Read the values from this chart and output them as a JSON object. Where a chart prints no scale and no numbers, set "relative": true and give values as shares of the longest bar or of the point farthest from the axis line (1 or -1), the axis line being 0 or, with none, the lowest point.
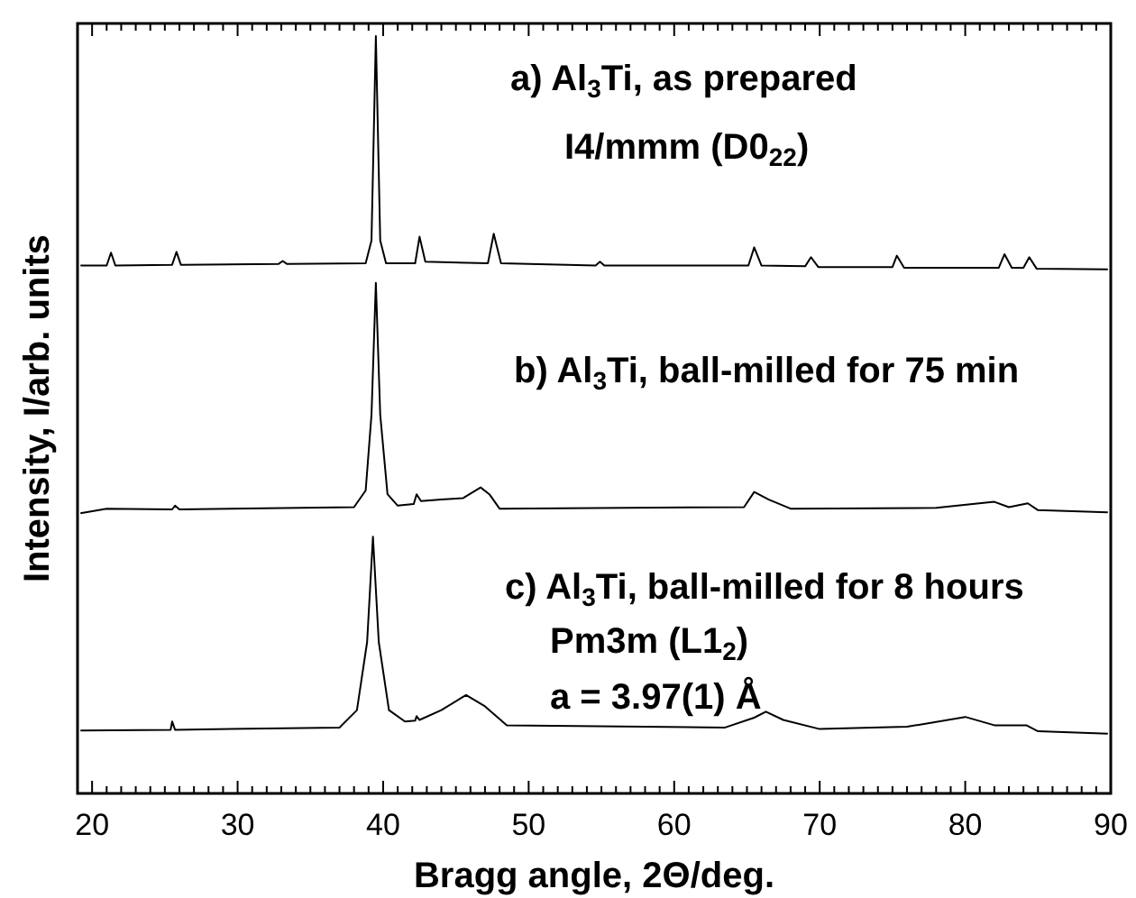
{
  "chart_data": {
    "type": "line",
    "relative": true,
    "xlabel": "Bragg angle, 2Θ/deg.",
    "ylabel": "Intensity, I/arb. units",
    "annotations": [
      "a) Al$_{3}$Ti, as prepared",
      "I4/mmm (D0$_{22}$)",
      "b) Al$_{3}$Ti, ball-milled for 75 min",
      "c) Al$_{3}$Ti, ball-milled for 8 hours",
      "Pm3m (L1$_{2}$)",
      "a = 3.97(1) Å"
    ],
    "xlim": [
      19,
      90
    ],
    "xticks": [
      20,
      {
        "value": 21,
        "label": null
      },
      {
        "value": 22,
        "label": null
      },
      {
        "value": 23,
        "label": null
      },
      {
        "value": 24,
        "label": null
      },
      {
        "value": 25,
        "label": null
      },
      {
        "value": 26,
        "label": null
      },
      {
        "value": 27,
        "label": null
      },
      {
        "value": 28,
        "label": null
      },
      {
        "value": 29,
        "label": null
      },
      30,
      {
        "value": 31,
        "label": null
      },
      {
        "value": 32,
        "label": null
      },
      {
        "value": 33,
        "label": null
      },
      {
        "value": 34,
        "label": null
      },
      {
        "value": 35,
        "label": null
      },
      {
        "value": 36,
        "label": null
      },
      {
        "value": 37,
        "label": null
      },
      {
        "value": 38,
        "label": null
      },
      {
        "value": 39,
        "label": null
      },
      40,
      {
        "value": 41,
        "label": null
      },
      {
        "value": 42,
        "label": null
      },
      {
        "value": 43,
        "label": null
      },
      {
        "value": 44,
        "label": null
      },
      {
        "value": 45,
        "label": null
      },
      {
        "value": 46,
        "label": null
      },
      {
        "value": 47,
        "label": null
      },
      {
        "value": 48,
        "label": null
      },
      {
        "value": 49,
        "label": null
      },
      50,
      {
        "value": 51,
        "label": null
      },
      {
        "value": 52,
        "label": null
      },
      {
        "value": 53,
        "label": null
      },
      {
        "value": 54,
        "label": null
      },
      {
        "value": 55,
        "label": null
      },
      {
        "value": 56,
        "label": null
      },
      {
        "value": 57,
        "label": null
      },
      {
        "value": 58,
        "label": null
      },
      {
        "value": 59,
        "label": null
      },
      60,
      {
        "value": 61,
        "label": null
      },
      {
        "value": 62,
        "label": null
      },
      {
        "value": 63,
        "label": null
      },
      {
        "value": 64,
        "label": null
      },
      {
        "value": 65,
        "label": null
      },
      {
        "value": 66,
        "label": null
      },
      {
        "value": 67,
        "label": null
      },
      {
        "value": 68,
        "label": null
      },
      {
        "value": 69,
        "label": null
      },
      70,
      {
        "value": 71,
        "label": null
      },
      {
        "value": 72,
        "label": null
      },
      {
        "value": 73,
        "label": null
      },
      {
        "value": 74,
        "label": null
      },
      {
        "value": 75,
        "label": null
      },
      {
        "value": 76,
        "label": null
      },
      {
        "value": 77,
        "label": null
      },
      {
        "value": 78,
        "label": null
      },
      {
        "value": 79,
        "label": null
      },
      80,
      {
        "value": 81,
        "label": null
      },
      {
        "value": 82,
        "label": null
      },
      {
        "value": 83,
        "label": null
      },
      {
        "value": 84,
        "label": null
      },
      {
        "value": 85,
        "label": null
      },
      {
        "value": 86,
        "label": null
      },
      {
        "value": 87,
        "label": null
      },
      {
        "value": 88,
        "label": null
      },
      {
        "value": 89,
        "label": null
      },
      90
    ],
    "series": [
      {
        "color": "#000000",
        "x": [
          19.2,
          21.0,
          21.3,
          21.6,
          25.5,
          25.8,
          26.1,
          32.8,
          33.1,
          33.4,
          38.8,
          39.2,
          39.5,
          39.8,
          40.2,
          42.2,
          42.5,
          42.9,
          47.2,
          47.6,
          48.1,
          54.6,
          54.9,
          55.2,
          65.1,
          65.5,
          66.0,
          69.0,
          69.4,
          69.9,
          75.0,
          75.3,
          75.8,
          82.3,
          82.7,
          83.2,
          84.0,
          84.4,
          84.9,
          89.8
        ],
        "values": [
          0.697,
          0.697,
          0.714,
          0.697,
          0.698,
          0.715,
          0.698,
          0.699,
          0.703,
          0.699,
          0.7,
          0.73,
          1.0,
          0.73,
          0.7,
          0.7,
          0.735,
          0.702,
          0.7,
          0.739,
          0.7,
          0.697,
          0.702,
          0.697,
          0.697,
          0.721,
          0.697,
          0.696,
          0.708,
          0.695,
          0.695,
          0.71,
          0.694,
          0.694,
          0.712,
          0.694,
          0.694,
          0.708,
          0.693,
          0.692
        ]
      },
      {
        "color": "#000000",
        "x": [
          19.2,
          21,
          25.5,
          25.7,
          26,
          38,
          38.8,
          39.2,
          39.5,
          39.8,
          40.3,
          41,
          42.1,
          42.3,
          42.6,
          44,
          45.5,
          46.7,
          47.3,
          48,
          64.8,
          65.5,
          66.5,
          68,
          78,
          82,
          83,
          84.3,
          85,
          89.8
        ],
        "values": [
          0.37,
          0.376,
          0.375,
          0.38,
          0.375,
          0.378,
          0.4,
          0.5,
          0.674,
          0.5,
          0.395,
          0.38,
          0.382,
          0.395,
          0.386,
          0.388,
          0.39,
          0.404,
          0.395,
          0.376,
          0.378,
          0.398,
          0.388,
          0.376,
          0.377,
          0.385,
          0.378,
          0.383,
          0.374,
          0.371
        ]
      },
      {
        "color": "#000000",
        "x": [
          19.2,
          25.4,
          25.5,
          25.7,
          37,
          38.2,
          38.9,
          39.3,
          39.7,
          40.4,
          41.5,
          42.2,
          42.3,
          42.5,
          44,
          45.7,
          47,
          48.5,
          63.5,
          65.5,
          66.3,
          67.5,
          70,
          76,
          80,
          82,
          84.2,
          85,
          89.8
        ],
        "values": [
          0.083,
          0.084,
          0.095,
          0.084,
          0.087,
          0.11,
          0.2,
          0.339,
          0.2,
          0.11,
          0.095,
          0.096,
          0.102,
          0.097,
          0.11,
          0.13,
          0.115,
          0.09,
          0.087,
          0.1,
          0.108,
          0.097,
          0.085,
          0.088,
          0.101,
          0.09,
          0.09,
          0.082,
          0.079
        ]
      }
    ]
  }
}
